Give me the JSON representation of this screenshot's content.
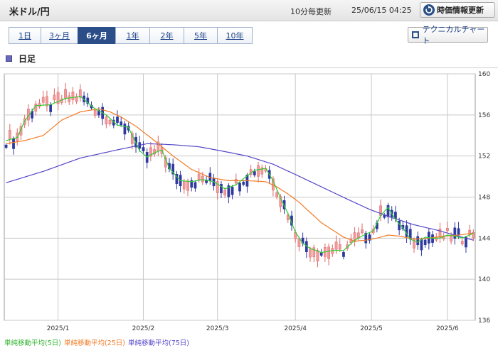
{
  "header": {
    "pair": "米ドル/円",
    "interval": "10分毎更新",
    "timestamp": "25/06/15 04:25",
    "refresh_label": "時価情報更新"
  },
  "tabs": [
    {
      "label": "1日",
      "active": false
    },
    {
      "label": "3ヶ月",
      "active": false
    },
    {
      "label": "6ヶ月",
      "active": true
    },
    {
      "label": "1年",
      "active": false
    },
    {
      "label": "2年",
      "active": false
    },
    {
      "label": "5年",
      "active": false
    },
    {
      "label": "10年",
      "active": false
    }
  ],
  "technical_button": "テクニカルチャート",
  "section_title": "日足",
  "colors": {
    "ma5": "#33cc33",
    "ma25": "#f07a24",
    "ma75": "#5548c8",
    "up": "#f29a9a",
    "down": "#2f3aa0",
    "grid": "#c8c8c8"
  },
  "chart_data": {
    "type": "candlestick",
    "y_ticks": [
      160,
      156,
      152,
      148,
      144,
      140,
      136
    ],
    "ylim": [
      136,
      160
    ],
    "x_ticks": [
      "2025/1",
      "2025/2",
      "2025/3",
      "2025/4",
      "2025/5",
      "2025/6"
    ],
    "x_tick_positions": [
      14,
      37,
      57,
      78,
      98.5,
      119
    ],
    "n_sessions": 127,
    "ma5": [
      [
        0,
        153.5
      ],
      [
        3,
        153.8
      ],
      [
        5,
        155.4
      ],
      [
        8,
        156.9
      ],
      [
        12,
        157.0
      ],
      [
        16,
        157.6
      ],
      [
        20,
        157.8
      ],
      [
        24,
        156.6
      ],
      [
        27,
        156.0
      ],
      [
        30,
        155.0
      ],
      [
        33,
        154.8
      ],
      [
        36,
        152.5
      ],
      [
        38,
        151.9
      ],
      [
        40,
        152.3
      ],
      [
        42,
        152.6
      ],
      [
        44,
        150.8
      ],
      [
        47,
        149.6
      ],
      [
        50,
        149.5
      ],
      [
        53,
        149.7
      ],
      [
        56,
        149.5
      ],
      [
        59,
        148.8
      ],
      [
        62,
        149.2
      ],
      [
        64,
        149.8
      ],
      [
        67,
        150.6
      ],
      [
        70,
        150.8
      ],
      [
        72,
        149.6
      ],
      [
        74,
        147.9
      ],
      [
        76,
        146.4
      ],
      [
        78,
        144.6
      ],
      [
        80,
        143.5
      ],
      [
        82,
        143.0
      ],
      [
        85,
        142.6
      ],
      [
        88,
        142.8
      ],
      [
        91,
        142.8
      ],
      [
        94,
        143.8
      ],
      [
        97,
        144.4
      ],
      [
        99,
        144.7
      ],
      [
        101,
        146.2
      ],
      [
        103,
        147.0
      ],
      [
        105,
        145.8
      ],
      [
        107,
        145.0
      ],
      [
        109,
        143.9
      ],
      [
        111,
        143.6
      ],
      [
        113,
        144.1
      ],
      [
        115,
        144.0
      ],
      [
        117,
        144.0
      ],
      [
        119,
        144.3
      ],
      [
        121,
        144.2
      ],
      [
        123,
        144.0
      ],
      [
        125,
        144.3
      ],
      [
        126,
        144.5
      ]
    ],
    "ma25": [
      [
        0,
        153.2
      ],
      [
        5,
        153.5
      ],
      [
        10,
        154.0
      ],
      [
        15,
        155.5
      ],
      [
        20,
        156.3
      ],
      [
        25,
        156.6
      ],
      [
        28,
        156.3
      ],
      [
        31,
        155.8
      ],
      [
        35,
        154.9
      ],
      [
        40,
        153.5
      ],
      [
        45,
        152.0
      ],
      [
        50,
        150.7
      ],
      [
        55,
        149.9
      ],
      [
        60,
        149.6
      ],
      [
        65,
        149.6
      ],
      [
        70,
        149.5
      ],
      [
        73,
        149.0
      ],
      [
        76,
        148.3
      ],
      [
        79,
        147.5
      ],
      [
        82,
        146.5
      ],
      [
        85,
        145.5
      ],
      [
        88,
        144.8
      ],
      [
        91,
        144.1
      ],
      [
        94,
        143.7
      ],
      [
        97,
        143.8
      ],
      [
        100,
        144.0
      ],
      [
        103,
        144.3
      ],
      [
        106,
        144.2
      ],
      [
        110,
        143.9
      ],
      [
        114,
        144.0
      ],
      [
        118,
        144.2
      ],
      [
        122,
        144.3
      ],
      [
        126,
        144.5
      ]
    ],
    "ma75": [
      [
        0,
        149.4
      ],
      [
        10,
        150.5
      ],
      [
        20,
        151.8
      ],
      [
        30,
        152.6
      ],
      [
        38,
        153.2
      ],
      [
        45,
        153.1
      ],
      [
        52,
        152.9
      ],
      [
        58,
        152.5
      ],
      [
        65,
        152.0
      ],
      [
        72,
        151.2
      ],
      [
        78,
        150.2
      ],
      [
        85,
        149.0
      ],
      [
        92,
        147.8
      ],
      [
        98,
        146.8
      ],
      [
        104,
        146.0
      ],
      [
        110,
        145.3
      ],
      [
        116,
        144.8
      ],
      [
        122,
        144.2
      ],
      [
        126,
        143.8
      ]
    ],
    "legend": [
      "単純移動平均(5日)",
      "単純移動平均(25日)",
      "単純移動平均(75日)"
    ]
  }
}
